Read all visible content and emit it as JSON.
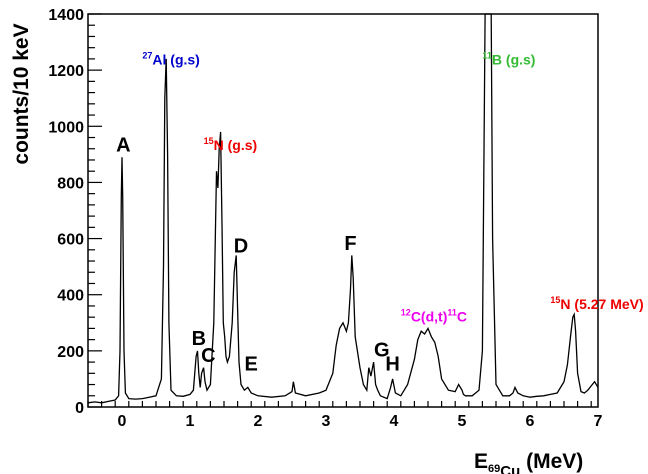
{
  "chart_data": {
    "type": "line",
    "title": "",
    "xlabel": {
      "main": "E",
      "sub1": "69",
      "sub2": "Cu",
      "rest": " (MeV)"
    },
    "ylabel": "counts/10 keV",
    "xlim": [
      -0.5,
      7.0
    ],
    "ylim": [
      0,
      1400
    ],
    "grid": false,
    "x_ticks": [
      0,
      1,
      2,
      3,
      4,
      5,
      6,
      7
    ],
    "x_tick_labels": [
      "0",
      "1",
      "2",
      "3",
      "4",
      "5",
      "6",
      "7"
    ],
    "y_ticks": [
      0,
      200,
      400,
      600,
      800,
      1000,
      1200,
      1400
    ],
    "y_tick_labels": [
      "0",
      "200",
      "400",
      "600",
      "800",
      "1000",
      "1200",
      "1400"
    ],
    "series": [
      {
        "line_color": "#000000",
        "x": [
          -0.5,
          -0.4,
          -0.3,
          -0.2,
          -0.1,
          -0.05,
          -0.03,
          -0.01,
          0.0,
          0.01,
          0.03,
          0.05,
          0.1,
          0.2,
          0.3,
          0.4,
          0.5,
          0.58,
          0.61,
          0.63,
          0.65,
          0.67,
          0.69,
          0.72,
          0.8,
          0.9,
          1.0,
          1.05,
          1.09,
          1.11,
          1.13,
          1.15,
          1.17,
          1.2,
          1.22,
          1.25,
          1.3,
          1.35,
          1.39,
          1.41,
          1.43,
          1.45,
          1.47,
          1.49,
          1.51,
          1.53,
          1.55,
          1.58,
          1.62,
          1.65,
          1.68,
          1.7,
          1.72,
          1.75,
          1.8,
          1.85,
          1.9,
          2.0,
          2.2,
          2.4,
          2.5,
          2.52,
          2.55,
          2.7,
          2.9,
          3.0,
          3.1,
          3.15,
          3.2,
          3.25,
          3.3,
          3.33,
          3.36,
          3.38,
          3.4,
          3.43,
          3.5,
          3.55,
          3.6,
          3.63,
          3.66,
          3.7,
          3.73,
          3.76,
          3.8,
          3.9,
          3.95,
          3.98,
          4.02,
          4.1,
          4.2,
          4.3,
          4.35,
          4.4,
          4.45,
          4.5,
          4.55,
          4.6,
          4.65,
          4.7,
          4.8,
          4.9,
          4.95,
          5.0,
          5.02,
          5.05,
          5.15,
          5.25,
          5.3,
          5.34,
          5.37,
          5.4,
          5.43,
          5.45,
          5.5,
          5.6,
          5.7,
          5.75,
          5.78,
          5.82,
          5.9,
          6.0,
          6.1,
          6.2,
          6.3,
          6.4,
          6.5,
          6.55,
          6.6,
          6.63,
          6.65,
          6.67,
          6.7,
          6.75,
          6.8,
          6.85,
          6.9,
          6.95,
          7.0
        ],
        "y": [
          15,
          18,
          15,
          20,
          25,
          40,
          200,
          750,
          890,
          750,
          200,
          50,
          30,
          28,
          30,
          35,
          40,
          100,
          500,
          1100,
          1240,
          900,
          300,
          60,
          40,
          38,
          45,
          60,
          180,
          200,
          120,
          70,
          120,
          140,
          90,
          60,
          80,
          300,
          840,
          780,
          920,
          980,
          650,
          300,
          250,
          180,
          160,
          180,
          300,
          480,
          540,
          350,
          160,
          80,
          60,
          70,
          50,
          40,
          35,
          40,
          55,
          90,
          50,
          40,
          50,
          60,
          120,
          220,
          280,
          300,
          270,
          300,
          420,
          540,
          460,
          250,
          140,
          80,
          60,
          140,
          110,
          160,
          80,
          60,
          40,
          30,
          70,
          100,
          50,
          40,
          80,
          170,
          240,
          270,
          260,
          280,
          250,
          230,
          180,
          100,
          60,
          55,
          80,
          60,
          45,
          40,
          40,
          60,
          200,
          1400,
          1400,
          1400,
          1400,
          600,
          80,
          40,
          40,
          50,
          70,
          50,
          40,
          35,
          38,
          40,
          45,
          50,
          90,
          150,
          260,
          320,
          330,
          270,
          120,
          55,
          50,
          60,
          75,
          90,
          70
        ]
      }
    ],
    "peak_labels": [
      {
        "text": "A",
        "x": 0.02,
        "y": 910
      },
      {
        "text": "B",
        "x": 1.13,
        "y": 220
      },
      {
        "text": "C",
        "x": 1.27,
        "y": 160
      },
      {
        "text": "D",
        "x": 1.75,
        "y": 550
      },
      {
        "text": "E",
        "x": 1.9,
        "y": 130
      },
      {
        "text": "F",
        "x": 3.36,
        "y": 560
      },
      {
        "text": "G",
        "x": 3.82,
        "y": 180
      },
      {
        "text": "H",
        "x": 3.98,
        "y": 130
      }
    ],
    "isotope_labels": [
      {
        "sup": "27",
        "text": "Al (g.s)",
        "x": 0.3,
        "y": 1220,
        "color": "#0000cc"
      },
      {
        "sup": "15",
        "text": "N (g.s)",
        "x": 1.2,
        "y": 915,
        "color": "#ee0000"
      },
      {
        "sup": "11",
        "text": "B (g.s)",
        "x": 5.3,
        "y": 1220,
        "color": "#33bb33"
      },
      {
        "sup": "15",
        "text": "N (5.27 MeV)",
        "x": 6.3,
        "y": 350,
        "color": "#ee0000"
      }
    ],
    "compound_label": {
      "sup1": "12",
      "main1": "C(d,t)",
      "sup2": "11",
      "main2": "C",
      "x": 4.1,
      "y": 305,
      "color": "#ee00ee"
    }
  }
}
